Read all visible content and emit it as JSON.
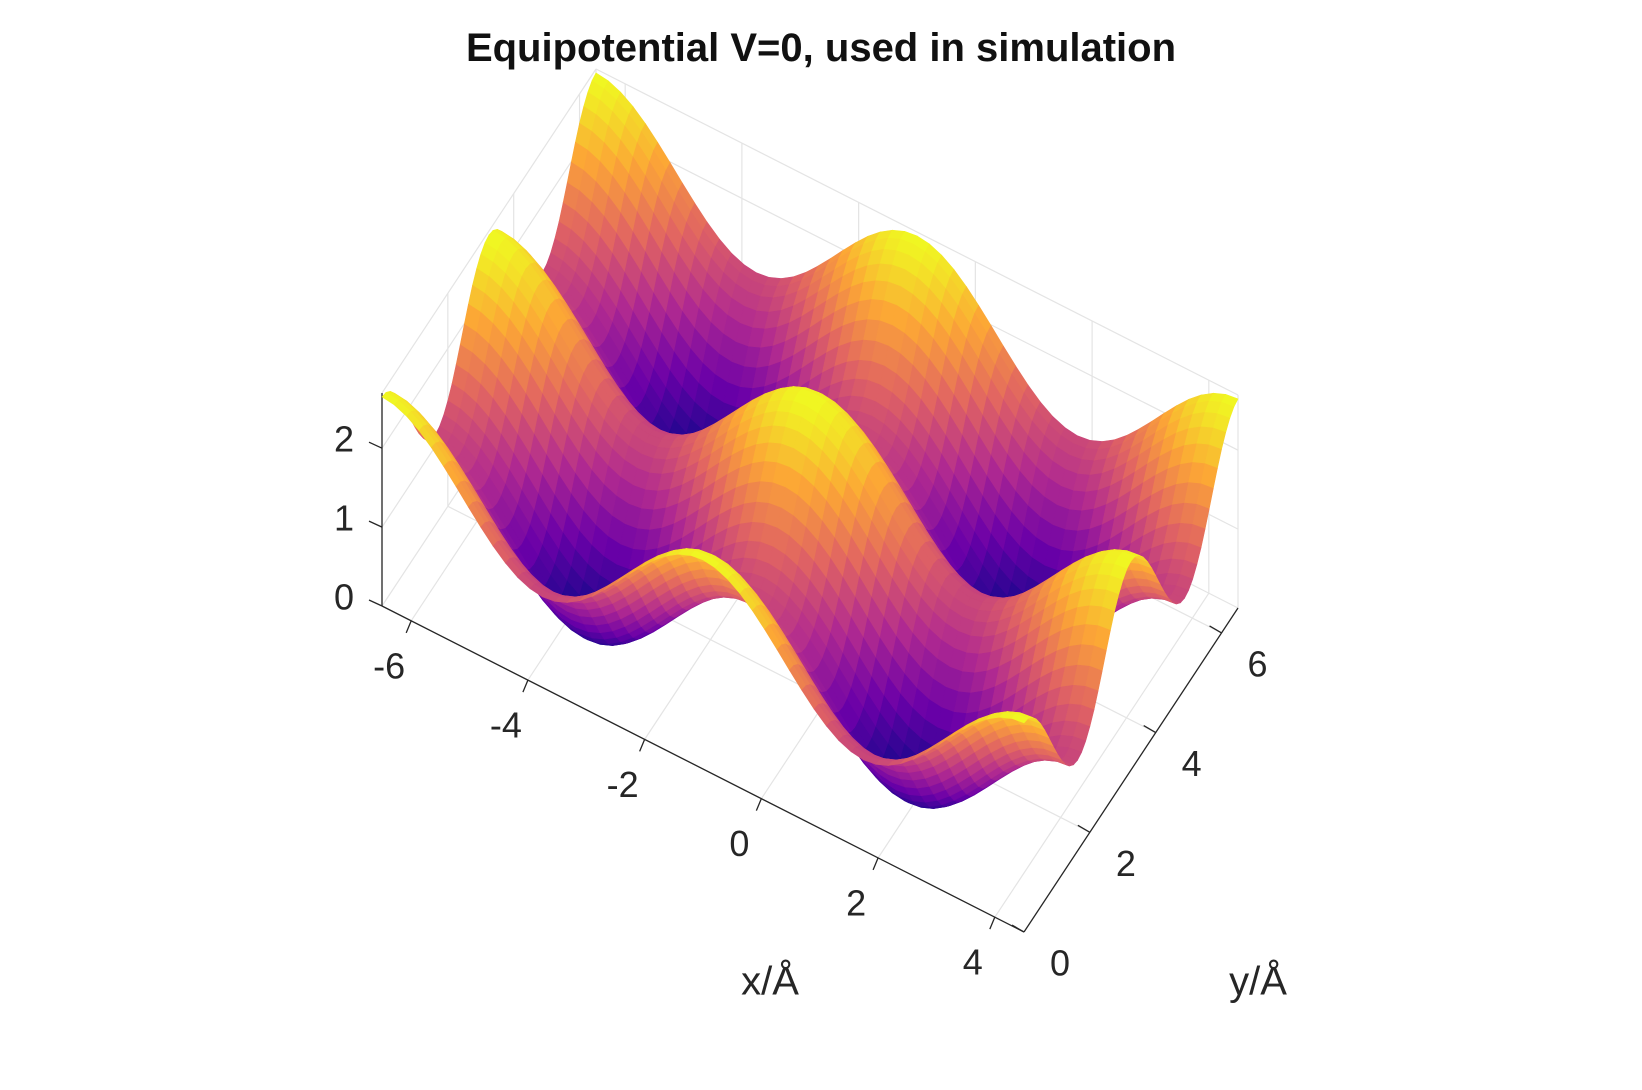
{
  "chart_data": {
    "type": "surface",
    "title": "Equipotential V=0, used in simulation",
    "xlabel": "x/Å",
    "ylabel": "y/Å",
    "zlabel": "",
    "x_range": [
      -6.5,
      4.5
    ],
    "y_range": [
      0,
      6.5
    ],
    "z_range": [
      0,
      2.7
    ],
    "x_ticks": [
      -6,
      -4,
      -2,
      0,
      2,
      4
    ],
    "x_tick_labels": [
      "-6",
      "-4",
      "-2",
      "0",
      "2",
      "4"
    ],
    "y_ticks": [
      0,
      2,
      4,
      6
    ],
    "y_tick_labels": [
      "0",
      "2",
      "4",
      "6"
    ],
    "z_ticks": [
      0,
      1,
      2
    ],
    "z_tick_labels": [
      "0",
      "1",
      "2"
    ],
    "grid": true,
    "colormap": [
      "#0d0887",
      "#6a00a8",
      "#b12a90",
      "#e16462",
      "#fca636",
      "#f0f921"
    ],
    "surface": {
      "description_of_shape": "periodic bumps: z = 1.15 + 0.75*cos(kx*x) + 0.75*cos(ky*y) with maxima at x = -6.5, -1, 4.5 and y = 0, 3.25, 6.5"
    }
  }
}
